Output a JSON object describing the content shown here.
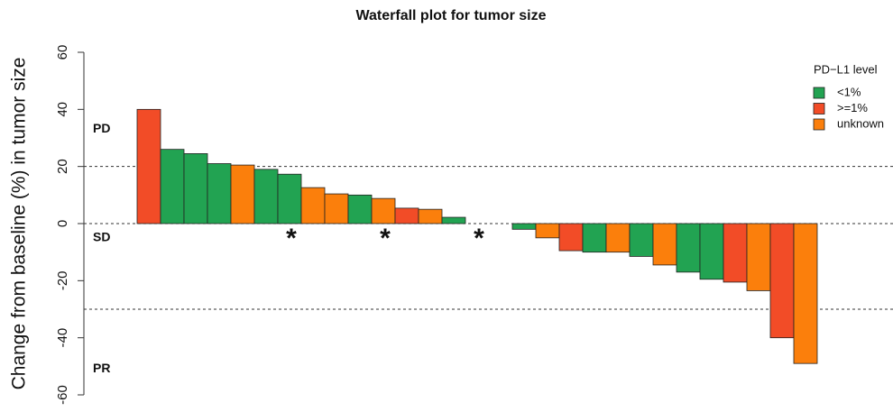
{
  "chart_data": {
    "type": "waterfall",
    "title": "Waterfall plot for tumor size",
    "y_label": "Change from baseline (%) in tumor size",
    "categories": [
      null,
      null,
      null,
      null,
      null,
      null,
      null,
      null,
      null,
      null,
      null,
      null,
      null,
      null,
      null,
      null,
      null,
      null,
      null,
      null,
      null,
      null,
      null,
      null,
      null,
      null,
      null,
      null,
      null
    ],
    "values": [
      40,
      26,
      24.5,
      21,
      20.5,
      19,
      17.3,
      12.6,
      10.4,
      10,
      8.8,
      5.4,
      5,
      2.2,
      0,
      0,
      -2,
      -5,
      -9.5,
      -10,
      -10,
      -11.5,
      -14.5,
      -17,
      -19.5,
      -20.5,
      -23.5,
      -40,
      -49
    ],
    "colors": [
      "#f24c27",
      "#22a352",
      "#22a352",
      "#22a352",
      "#fb7f0c",
      "#22a352",
      "#22a352",
      "#fb7f0c",
      "#fb7f0c",
      "#22a352",
      "#fb7f0c",
      "#f24c27",
      "#fb7f0c",
      "#22a352",
      "#22a352",
      "#22a352",
      "#22a352",
      "#fb7f0c",
      "#f24c27",
      "#22a352",
      "#fb7f0c",
      "#22a352",
      "#fb7f0c",
      "#22a352",
      "#22a352",
      "#f24c27",
      "#fb7f0c",
      "#f24c27",
      "#fb7f0c"
    ],
    "bar_annotations": [
      null,
      null,
      null,
      null,
      null,
      null,
      "*",
      null,
      null,
      null,
      "*",
      null,
      null,
      null,
      "*",
      null,
      null,
      null,
      null,
      null,
      null,
      null,
      null,
      null,
      null,
      null,
      null,
      null,
      null
    ],
    "ylim": [
      -60,
      60
    ],
    "yticks": [
      -60,
      -40,
      -20,
      0,
      20,
      40,
      60
    ],
    "reference_lines": [
      20,
      0,
      -30
    ],
    "regions": [
      {
        "label": "PD",
        "y": 33
      },
      {
        "label": "SD",
        "y": -5
      },
      {
        "label": "PR",
        "y": -51
      }
    ],
    "legend": {
      "title": "PD−L1 level",
      "position": "top-right",
      "entries": [
        {
          "name": "<1%",
          "color": "#22a352"
        },
        {
          "name": ">=1%",
          "color": "#f24c27"
        },
        {
          "name": "unknown",
          "color": "#fb7f0c"
        }
      ]
    }
  }
}
